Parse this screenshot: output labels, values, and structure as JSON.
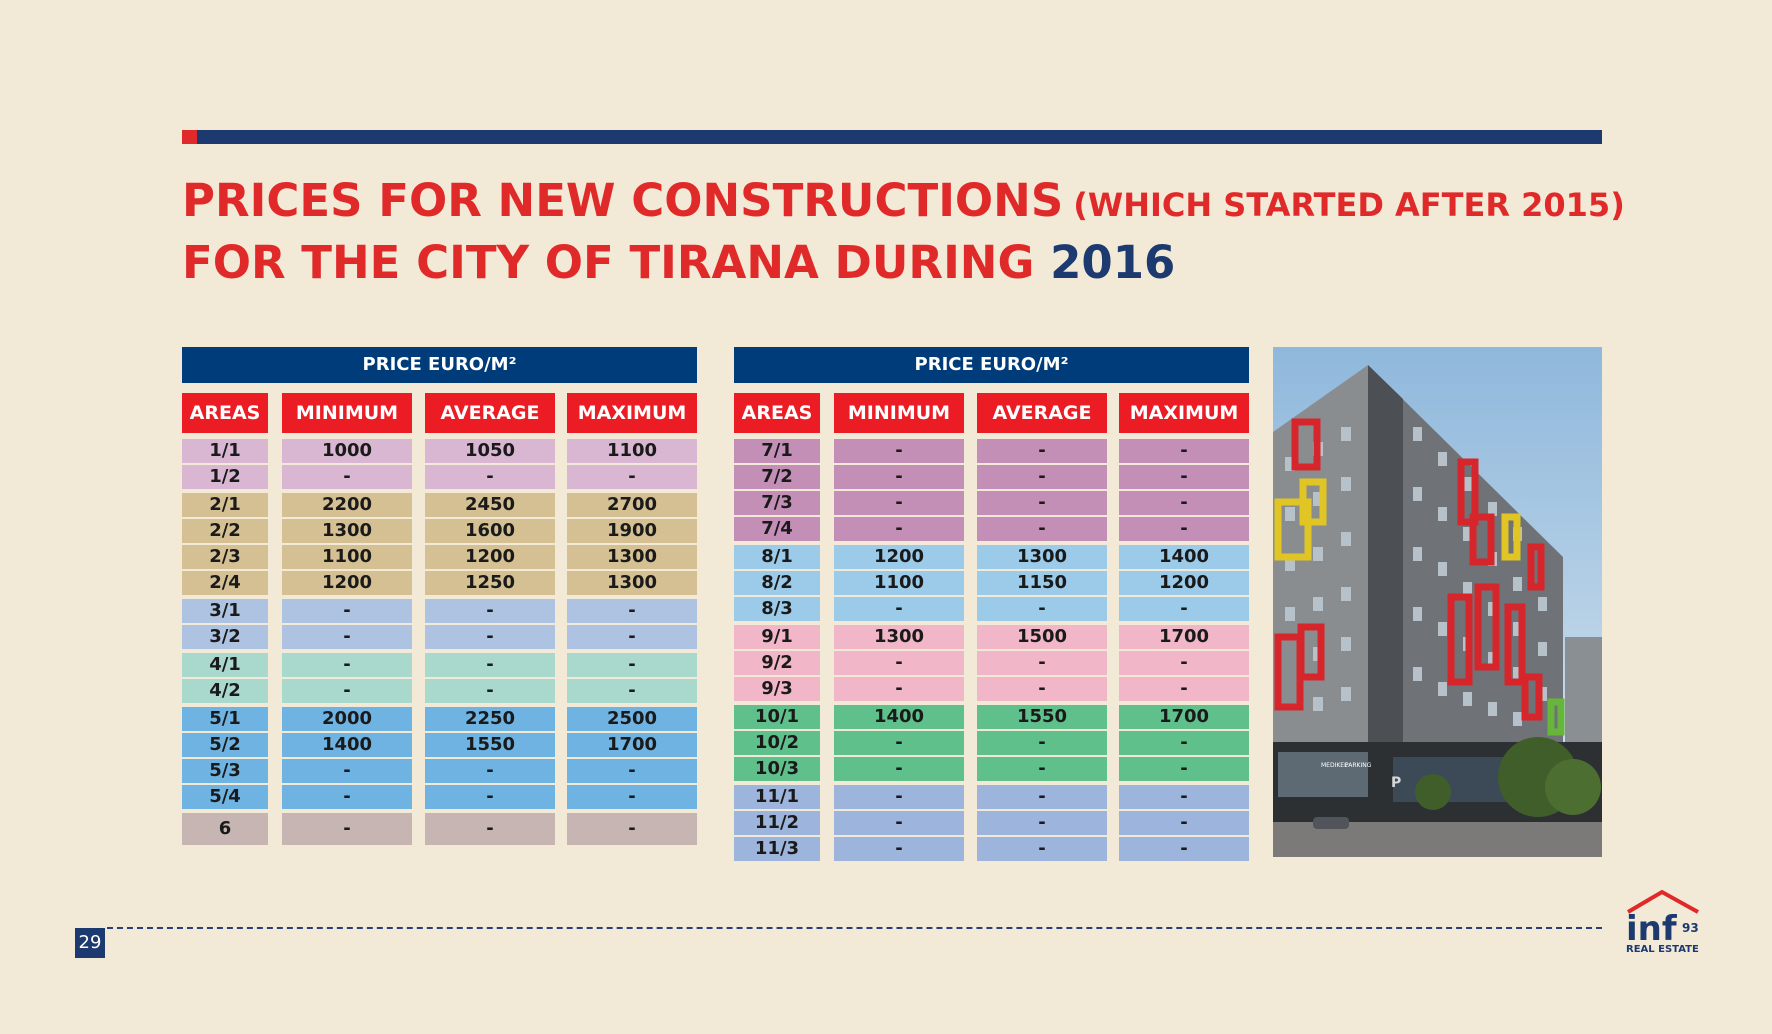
{
  "title": {
    "line1": "PRICES FOR NEW CONSTRUCTIONS",
    "line1_note": "(WHICH STARTED AFTER 2015)",
    "line2": "FOR THE CITY OF TIRANA DURING",
    "year": "2016"
  },
  "tables": [
    {
      "price_header": "PRICE EURO/M²",
      "columns": [
        "AREAS",
        "MINIMUM",
        "AVERAGE",
        "MAXIMUM"
      ],
      "rows": [
        {
          "area": "1/1",
          "min": "1000",
          "avg": "1050",
          "max": "1100",
          "color": "#d9b6d2",
          "gap": false
        },
        {
          "area": "1/2",
          "min": "-",
          "avg": "-",
          "max": "-",
          "color": "#d9b6d2",
          "gap": false
        },
        {
          "area": "2/1",
          "min": "2200",
          "avg": "2450",
          "max": "2700",
          "color": "#d4c093",
          "gap": true
        },
        {
          "area": "2/2",
          "min": "1300",
          "avg": "1600",
          "max": "1900",
          "color": "#d4c093",
          "gap": false
        },
        {
          "area": "2/3",
          "min": "1100",
          "avg": "1200",
          "max": "1300",
          "color": "#d4c093",
          "gap": false
        },
        {
          "area": "2/4",
          "min": "1200",
          "avg": "1250",
          "max": "1300",
          "color": "#d4c093",
          "gap": false
        },
        {
          "area": "3/1",
          "min": "-",
          "avg": "-",
          "max": "-",
          "color": "#aec3e2",
          "gap": true
        },
        {
          "area": "3/2",
          "min": "-",
          "avg": "-",
          "max": "-",
          "color": "#aec3e2",
          "gap": false
        },
        {
          "area": "4/1",
          "min": "-",
          "avg": "-",
          "max": "-",
          "color": "#a9d8cd",
          "gap": true
        },
        {
          "area": "4/2",
          "min": "-",
          "avg": "-",
          "max": "-",
          "color": "#a9d8cd",
          "gap": false
        },
        {
          "area": "5/1",
          "min": "2000",
          "avg": "2250",
          "max": "2500",
          "color": "#6fb3e3",
          "gap": true
        },
        {
          "area": "5/2",
          "min": "1400",
          "avg": "1550",
          "max": "1700",
          "color": "#6fb3e3",
          "gap": false
        },
        {
          "area": "5/3",
          "min": "-",
          "avg": "-",
          "max": "-",
          "color": "#6fb3e3",
          "gap": false
        },
        {
          "area": "5/4",
          "min": "-",
          "avg": "-",
          "max": "-",
          "color": "#6fb3e3",
          "gap": false
        },
        {
          "area": "6",
          "min": "-",
          "avg": "-",
          "max": "-",
          "color": "#c7b5b3",
          "gap": true,
          "tall": true
        }
      ]
    },
    {
      "price_header": "PRICE EURO/M²",
      "columns": [
        "AREAS",
        "MINIMUM",
        "AVERAGE",
        "MAXIMUM"
      ],
      "rows": [
        {
          "area": "7/1",
          "min": "-",
          "avg": "-",
          "max": "-",
          "color": "#c48fb7",
          "gap": false
        },
        {
          "area": "7/2",
          "min": "-",
          "avg": "-",
          "max": "-",
          "color": "#c48fb7",
          "gap": false
        },
        {
          "area": "7/3",
          "min": "-",
          "avg": "-",
          "max": "-",
          "color": "#c48fb7",
          "gap": false
        },
        {
          "area": "7/4",
          "min": "-",
          "avg": "-",
          "max": "-",
          "color": "#c48fb7",
          "gap": false
        },
        {
          "area": "8/1",
          "min": "1200",
          "avg": "1300",
          "max": "1400",
          "color": "#9ccbea",
          "gap": true
        },
        {
          "area": "8/2",
          "min": "1100",
          "avg": "1150",
          "max": "1200",
          "color": "#9ccbea",
          "gap": false
        },
        {
          "area": "8/3",
          "min": "-",
          "avg": "-",
          "max": "-",
          "color": "#9ccbea",
          "gap": false
        },
        {
          "area": "9/1",
          "min": "1300",
          "avg": "1500",
          "max": "1700",
          "color": "#f1b6c8",
          "gap": true
        },
        {
          "area": "9/2",
          "min": "-",
          "avg": "-",
          "max": "-",
          "color": "#f1b6c8",
          "gap": false
        },
        {
          "area": "9/3",
          "min": "-",
          "avg": "-",
          "max": "-",
          "color": "#f1b6c8",
          "gap": false
        },
        {
          "area": "10/1",
          "min": "1400",
          "avg": "1550",
          "max": "1700",
          "color": "#5fc08b",
          "gap": true
        },
        {
          "area": "10/2",
          "min": "-",
          "avg": "-",
          "max": "-",
          "color": "#5fc08b",
          "gap": false
        },
        {
          "area": "10/3",
          "min": "-",
          "avg": "-",
          "max": "-",
          "color": "#5fc08b",
          "gap": false
        },
        {
          "area": "11/1",
          "min": "-",
          "avg": "-",
          "max": "-",
          "color": "#9db4dc",
          "gap": true
        },
        {
          "area": "11/2",
          "min": "-",
          "avg": "-",
          "max": "-",
          "color": "#9db4dc",
          "gap": false
        },
        {
          "area": "11/3",
          "min": "-",
          "avg": "-",
          "max": "-",
          "color": "#9db4dc",
          "gap": false
        }
      ]
    }
  ],
  "colors": {
    "background": "#f2e9d6",
    "accent_red": "#e02a2a",
    "navy": "#1c3a70",
    "header_blue": "#003b7a",
    "header_red": "#ec1c24"
  },
  "footer": {
    "page_number": "29",
    "logo_text": "inf",
    "logo_number": "93",
    "logo_subtitle": "REAL ESTATE"
  },
  "photo": {
    "icon": "building-photo",
    "sign_left": "MEDIKEL",
    "sign_right": "PARKING",
    "sign_p": "P"
  }
}
